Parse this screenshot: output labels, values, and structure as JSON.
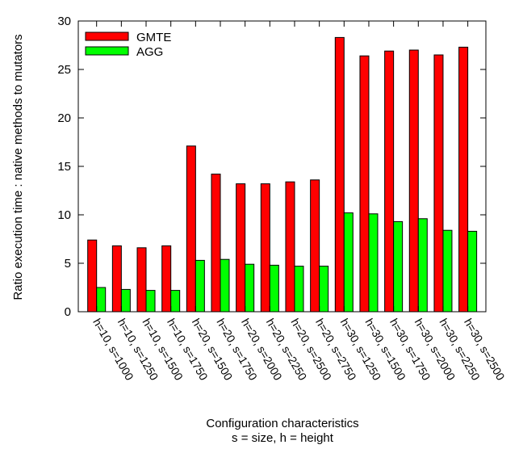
{
  "chart_data": {
    "type": "bar",
    "categories": [
      "h=10, s=1000",
      "h=10, s=1250",
      "h=10, s=1500",
      "h=10, s=1750",
      "h=20, s=1500",
      "h=20, s=1750",
      "h=20, s=2000",
      "h=20, s=2250",
      "h=20, s=2500",
      "h=20, s=2750",
      "h=30, s=1250",
      "h=30, s=1500",
      "h=30, s=1750",
      "h=30, s=2000",
      "h=30, s=2250",
      "h=30, s=2500"
    ],
    "series": [
      {
        "name": "GMTE",
        "color": "#ff0000",
        "values": [
          7.4,
          6.8,
          6.6,
          6.8,
          17.1,
          14.2,
          13.2,
          13.2,
          13.4,
          13.6,
          28.3,
          26.4,
          26.9,
          27.0,
          26.5,
          27.3
        ]
      },
      {
        "name": "AGG",
        "color": "#00ff00",
        "values": [
          2.5,
          2.3,
          2.2,
          2.2,
          5.3,
          5.4,
          4.9,
          4.8,
          4.7,
          4.7,
          10.2,
          10.1,
          9.3,
          9.6,
          8.4,
          8.3
        ]
      }
    ],
    "ylabel": "Ratio execution time : native methods to mutators",
    "xlabel": "Configuration characteristics",
    "xlabel2": "s = size, h = height",
    "ylim": [
      0,
      30
    ],
    "yticks": [
      0,
      5,
      10,
      15,
      20,
      25,
      30
    ],
    "legend_position": "top-left",
    "grid": false
  }
}
